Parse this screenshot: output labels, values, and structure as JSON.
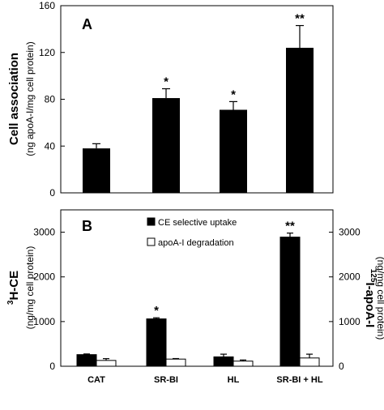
{
  "chart_data": [
    {
      "type": "bar",
      "panel_label": "A",
      "categories": [
        "CAT",
        "SR-BI",
        "HL",
        "SR-BI + HL"
      ],
      "values": [
        38,
        81,
        71,
        124
      ],
      "errors": [
        4,
        8,
        7,
        19
      ],
      "annotations": [
        "",
        "*",
        "*",
        "**"
      ],
      "ylabel_main": "Cell association",
      "ylabel_sub": "(ng apoA-I/mg cell protein)",
      "ylim": [
        0,
        160
      ],
      "yticks": [
        0,
        40,
        80,
        120,
        160
      ],
      "colors": {
        "bar": "#000000"
      }
    },
    {
      "type": "bar",
      "panel_label": "B",
      "categories": [
        "CAT",
        "SR-BI",
        "HL",
        "SR-BI + HL"
      ],
      "series": [
        {
          "name": "CE selective uptake",
          "values": [
            260,
            1060,
            210,
            2890
          ],
          "errors": [
            15,
            25,
            60,
            90
          ],
          "annotations": [
            "",
            "*",
            "",
            "**"
          ],
          "color": "#000000"
        },
        {
          "name": "apoA-I degradation",
          "values": [
            130,
            160,
            115,
            185
          ],
          "errors": [
            40,
            12,
            25,
            85
          ],
          "annotations": [
            "",
            "",
            "",
            ""
          ],
          "color": "#ffffff"
        }
      ],
      "ylabel_left_main": "3H-CE",
      "ylabel_left_sup": "3",
      "ylabel_left_text": "H-CE",
      "ylabel_left_sub": "(ng/mg cell protein)",
      "ylabel_right_sup": "125",
      "ylabel_right_text": "I-apoA-I",
      "ylabel_right_sub": "(ng/mg cell protein)",
      "ylim": [
        0,
        3500
      ],
      "yticks": [
        0,
        1000,
        2000,
        3000
      ],
      "legend_position": "top-center"
    }
  ]
}
